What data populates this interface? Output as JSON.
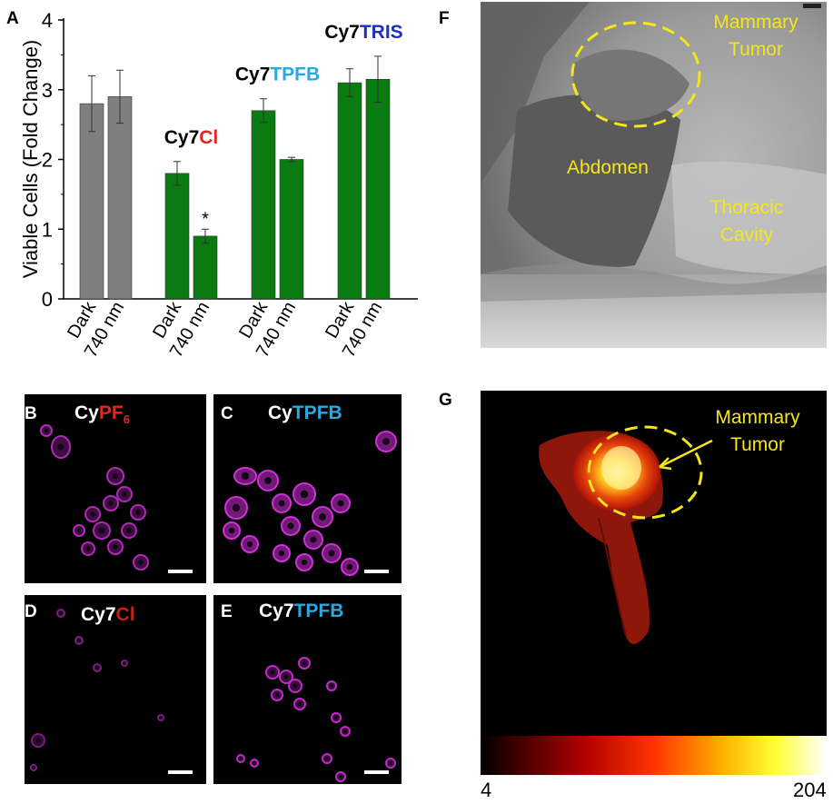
{
  "panels": {
    "A": "A",
    "B": "B",
    "C": "C",
    "D": "D",
    "E": "E",
    "F": "F",
    "G": "G"
  },
  "chart_data": {
    "type": "bar",
    "ylabel": "Viable Cells (Fold Change)",
    "ylim": [
      0,
      4
    ],
    "yticks": [
      "0",
      "1",
      "2",
      "3",
      "4"
    ],
    "groups": [
      {
        "label_prefix": "",
        "label_suffix": "",
        "suffix_color": "",
        "bar_color": "#7f7f7f",
        "bars": [
          {
            "category": "Dark",
            "value": 2.8,
            "error": 0.4,
            "annotation": ""
          },
          {
            "category": "740 nm",
            "value": 2.9,
            "error": 0.38,
            "annotation": ""
          }
        ]
      },
      {
        "label_prefix": "Cy7",
        "label_suffix": "Cl",
        "suffix_color": "#e0281f",
        "bar_color": "#0a7b10",
        "bars": [
          {
            "category": "Dark",
            "value": 1.8,
            "error": 0.17,
            "annotation": ""
          },
          {
            "category": "740 nm",
            "value": 0.9,
            "error": 0.1,
            "annotation": "*"
          }
        ]
      },
      {
        "label_prefix": "Cy7",
        "label_suffix": "TPFB",
        "suffix_color": "#29a9e0",
        "bar_color": "#0a7b10",
        "bars": [
          {
            "category": "Dark",
            "value": 2.7,
            "error": 0.17,
            "annotation": ""
          },
          {
            "category": "740 nm",
            "value": 2.0,
            "error": 0.03,
            "annotation": ""
          }
        ]
      },
      {
        "label_prefix": "Cy7",
        "label_suffix": "TRIS",
        "suffix_color": "#1f2fbf",
        "bar_color": "#0a7b10",
        "bars": [
          {
            "category": "Dark",
            "value": 3.1,
            "error": 0.2,
            "annotation": ""
          },
          {
            "category": "740 nm",
            "value": 3.15,
            "error": 0.33,
            "annotation": ""
          }
        ]
      }
    ]
  },
  "micrographs": {
    "B": {
      "prefix": "Cy",
      "suffix": "PF",
      "subscript": "6",
      "suffix_color": "#e0281f"
    },
    "C": {
      "prefix": "Cy",
      "suffix": "TPFB",
      "suffix_color": "#29a9e0"
    },
    "D": {
      "prefix": "Cy7",
      "suffix": "Cl",
      "suffix_color": "#c0201a"
    },
    "E": {
      "prefix": "Cy7",
      "suffix": "TPFB",
      "suffix_color": "#29a9e0"
    }
  },
  "photo_F": {
    "mammary_tumor": [
      "Mammary",
      "Tumor"
    ],
    "abdomen": "Abdomen",
    "thoracic_cavity": [
      "Thoracic",
      "Cavity"
    ],
    "text_color": "#f5e51b"
  },
  "fluor_G": {
    "mammary_tumor": [
      "Mammary",
      "Tumor"
    ],
    "colorbar_min": "4",
    "colorbar_max": "204"
  }
}
